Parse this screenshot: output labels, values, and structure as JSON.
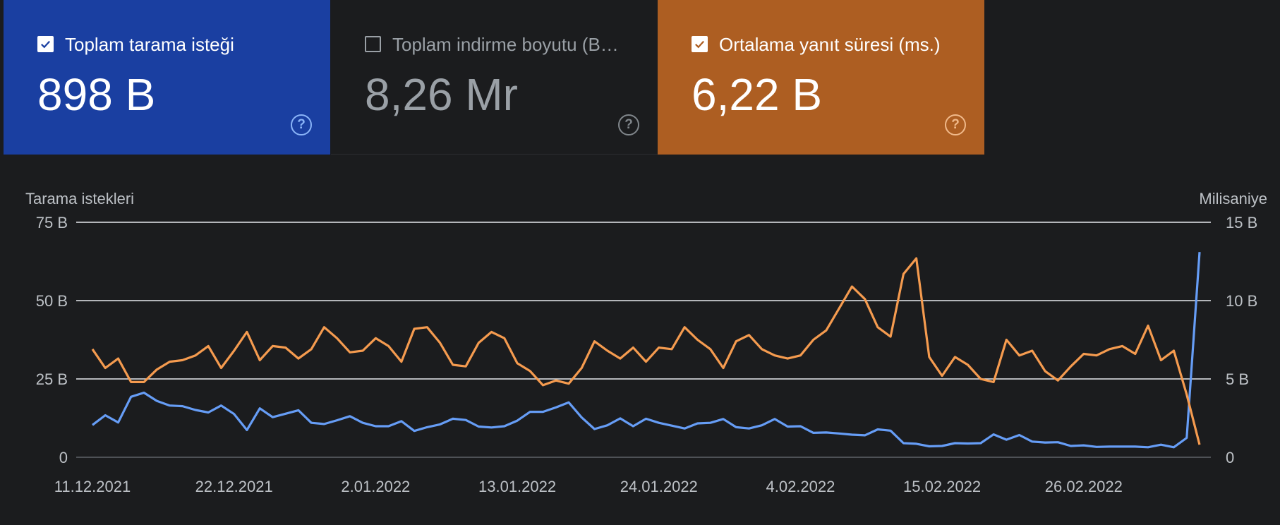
{
  "cards": [
    {
      "label": "Toplam tarama isteği",
      "value": "898 B",
      "checked": true,
      "bg": "#1a3fa1",
      "text_color": "#ffffff",
      "value_color": "#ffffff",
      "check_color": "#1a3fa1",
      "help_color": "#8ab4f8",
      "help_icon": "help-circle-icon"
    },
    {
      "label": "Toplam indirme boyutu (B…",
      "value": "8,26 Mr",
      "checked": false,
      "bg": "#1b1c1e",
      "text_color": "#9aa0a6",
      "value_color": "#9aa0a6",
      "check_color": "#9aa0a6",
      "help_color": "#80868b",
      "help_icon": "help-circle-icon"
    },
    {
      "label": "Ortalama yanıt süresi (ms.)",
      "value": "6,22 B",
      "checked": true,
      "bg": "#ad5e22",
      "text_color": "#ffffff",
      "value_color": "#ffffff",
      "check_color": "#ad5e22",
      "help_color": "#f0b98a",
      "help_icon": "help-circle-icon"
    }
  ],
  "chart_data": {
    "type": "line",
    "left_axis_title": "Tarama istekleri",
    "right_axis_title": "Milisaniye",
    "left_ticks": [
      "0",
      "25 B",
      "50 B",
      "75 B"
    ],
    "right_ticks": [
      "0",
      "5 B",
      "10 B",
      "15 B"
    ],
    "left_range": [
      0,
      75000
    ],
    "right_range": [
      0,
      15000
    ],
    "grid": true,
    "x_labels": [
      "11.12.2021",
      "22.12.2021",
      "2.01.2022",
      "13.01.2022",
      "24.01.2022",
      "4.02.2022",
      "15.02.2022",
      "26.02.2022"
    ],
    "x_start_date": "2021-12-11",
    "x_end_date": "2022-03-08",
    "series": [
      {
        "color": "#669df6",
        "axis": "left",
        "values": [
          10300,
          13400,
          11100,
          19300,
          20600,
          18000,
          16500,
          16300,
          15100,
          14300,
          16500,
          13800,
          8700,
          15600,
          12800,
          13900,
          15000,
          11000,
          10600,
          11800,
          13100,
          11000,
          9900,
          9900,
          11500,
          8400,
          9600,
          10500,
          12300,
          11900,
          9800,
          9500,
          9900,
          11700,
          14500,
          14500,
          15900,
          17500,
          12700,
          9000,
          10200,
          12400,
          9900,
          12300,
          11000,
          10100,
          9200,
          10800,
          11000,
          12200,
          9600,
          9200,
          10200,
          12200,
          9800,
          9900,
          7800,
          7900,
          7600,
          7200,
          7000,
          8900,
          8500,
          4500,
          4300,
          3500,
          3600,
          4500,
          4400,
          4500,
          7300,
          5600,
          7100,
          5000,
          4700,
          4800,
          3600,
          3800,
          3300,
          3400,
          3400,
          3400,
          3200,
          4000,
          3200,
          6200,
          65500
        ]
      },
      {
        "color": "#f59b4f",
        "axis": "right",
        "values": [
          6900,
          5700,
          6300,
          4800,
          4800,
          5600,
          6100,
          6200,
          6500,
          7100,
          5700,
          6800,
          8000,
          6200,
          7100,
          7000,
          6300,
          6900,
          8300,
          7600,
          6700,
          6800,
          7600,
          7100,
          6100,
          8200,
          8300,
          7300,
          5900,
          5800,
          7300,
          8000,
          7600,
          6000,
          5500,
          4600,
          4900,
          4700,
          5700,
          7400,
          6800,
          6300,
          7000,
          6100,
          7000,
          6900,
          8300,
          7500,
          6900,
          5700,
          7400,
          7800,
          6900,
          6500,
          6300,
          6500,
          7500,
          8100,
          9500,
          10900,
          10100,
          8300,
          7700,
          11700,
          12700,
          6400,
          5200,
          6400,
          5900,
          5000,
          4800,
          7500,
          6500,
          6800,
          5500,
          4900,
          5800,
          6600,
          6500,
          6900,
          7100,
          6600,
          8400,
          6200,
          6800,
          4000,
          800
        ]
      }
    ]
  }
}
